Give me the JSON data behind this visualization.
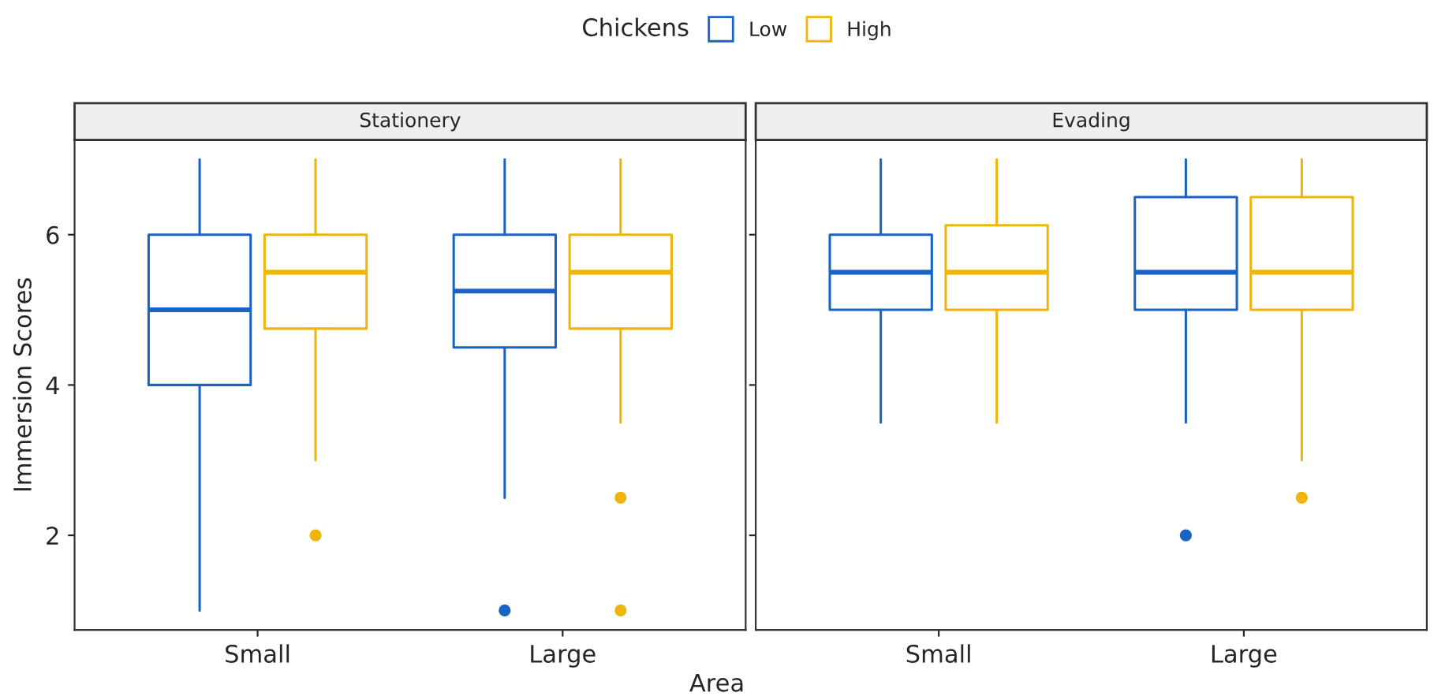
{
  "chart_data": [
    {
      "type": "box",
      "title": "Stationery",
      "xlabel": "Area",
      "ylabel": "Immersion Scores",
      "legend_title": "Chickens",
      "legend": "top",
      "grid": false,
      "categories": [
        "Small",
        "Large"
      ],
      "ylim": [
        0.74,
        7.26
      ],
      "yticks": [
        2,
        4,
        6
      ],
      "series": [
        {
          "name": "Low",
          "color": "#1a63c4",
          "boxes": [
            {
              "low": 1,
              "q1": 4,
              "median": 5,
              "q3": 6,
              "high": 7
            },
            {
              "low": 2.5,
              "q1": 4.5,
              "median": 5.25,
              "q3": 6,
              "high": 7,
              "outliers": [
                1
              ]
            }
          ]
        },
        {
          "name": "High",
          "color": "#efb50c",
          "boxes": [
            {
              "low": 3,
              "q1": 4.75,
              "median": 5.5,
              "q3": 6,
              "high": 7,
              "outliers": [
                2
              ]
            },
            {
              "low": 3.5,
              "q1": 4.75,
              "median": 5.5,
              "q3": 6,
              "high": 7,
              "outliers": [
                2.5,
                1
              ]
            }
          ]
        }
      ]
    },
    {
      "type": "box",
      "title": "Evading",
      "grid": false,
      "tick_labels": "x",
      "categories": [
        "Small",
        "Large"
      ],
      "ylim": [
        0.74,
        7.26
      ],
      "yticks": [
        2,
        4,
        6
      ],
      "series": [
        {
          "color": "#1a63c4",
          "boxes": [
            {
              "low": 3.5,
              "q1": 5,
              "median": 5.5,
              "q3": 6,
              "high": 7
            },
            {
              "low": 3.5,
              "q1": 5,
              "median": 5.5,
              "q3": 6.5,
              "high": 7,
              "outliers": [
                2
              ]
            }
          ]
        },
        {
          "color": "#efb50c",
          "boxes": [
            {
              "low": 3.5,
              "q1": 5,
              "median": 5.5,
              "q3": 6.125,
              "high": 7
            },
            {
              "low": 3,
              "q1": 5,
              "median": 5.5,
              "q3": 6.5,
              "high": 7,
              "outliers": [
                2.5
              ]
            }
          ]
        }
      ]
    }
  ]
}
